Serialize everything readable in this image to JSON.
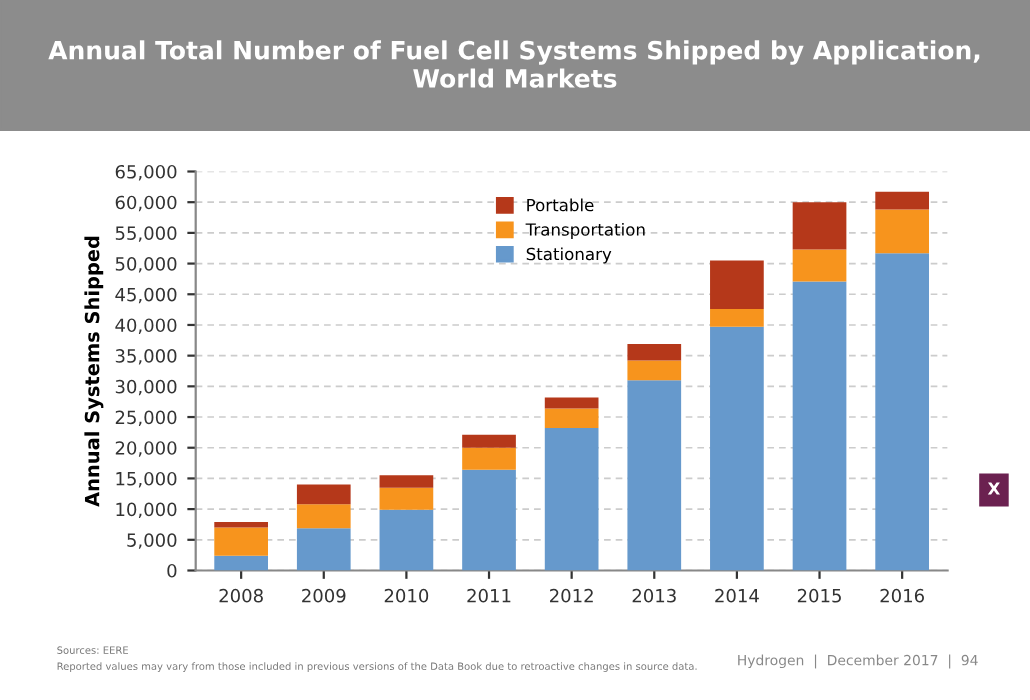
{
  "chart_data": {
    "type": "bar",
    "stacked": true,
    "title": "Annual Total Number of Fuel Cell Systems Shipped by Application,\nWorld Markets",
    "ylabel": "Annual Systems Shipped",
    "categories": [
      "2008",
      "2009",
      "2010",
      "2011",
      "2012",
      "2013",
      "2014",
      "2015",
      "2016"
    ],
    "series": [
      {
        "name": "Stationary",
        "color": "#6699cc",
        "values": [
          2400,
          6900,
          9900,
          16400,
          23200,
          31000,
          39700,
          47100,
          51700
        ]
      },
      {
        "name": "Transportation",
        "color": "#f7941d",
        "values": [
          4600,
          3900,
          3600,
          3600,
          3200,
          3200,
          2900,
          5200,
          7100
        ]
      },
      {
        "name": "Portable",
        "color": "#b5381a",
        "values": [
          900,
          3200,
          2000,
          2100,
          1800,
          2700,
          7900,
          7700,
          2900
        ]
      }
    ],
    "ylim": [
      0,
      65000
    ],
    "yticks": [
      {
        "value": 0,
        "label": "0"
      },
      {
        "value": 5000,
        "label": "5,000"
      },
      {
        "value": 10000,
        "label": "10,000"
      },
      {
        "value": 15000,
        "label": "15,000"
      },
      {
        "value": 20000,
        "label": "20,000"
      },
      {
        "value": 25000,
        "label": "25,000"
      },
      {
        "value": 30000,
        "label": "30,000"
      },
      {
        "value": 35000,
        "label": "35,000"
      },
      {
        "value": 40000,
        "label": "40,000"
      },
      {
        "value": 45000,
        "label": "45,000"
      },
      {
        "value": 50000,
        "label": "50,000"
      },
      {
        "value": 55000,
        "label": "55,000"
      },
      {
        "value": 60000,
        "label": "60,000"
      },
      {
        "value": 65000,
        "label": "65,000"
      }
    ],
    "grid": "y",
    "legend": "top",
    "annotations": [
      "Sources: EERE",
      "Reported values may vary from those included in previous versions of the Data Book due to retroactive changes in source data.",
      "Hydrogen  |  December 2017  |  94",
      "X"
    ]
  }
}
